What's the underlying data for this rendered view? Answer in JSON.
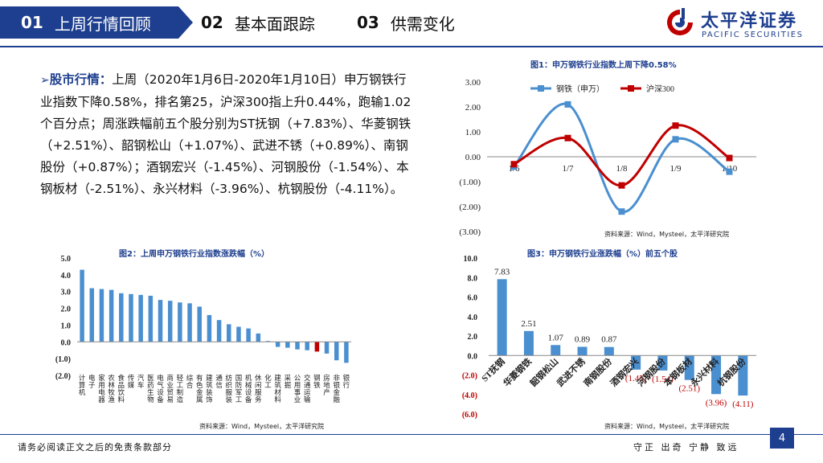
{
  "header": {
    "tabs": [
      {
        "num": "01",
        "label": "上周行情回顾"
      },
      {
        "num": "02",
        "label": "基本面跟踪"
      },
      {
        "num": "03",
        "label": "供需变化"
      }
    ],
    "logo_cn": "太平洋证券",
    "logo_en": "PACIFIC SECURITIES"
  },
  "market": {
    "keyword": "股市行情：",
    "text": "上周（2020年1月6日-2020年1月10日）申万钢铁行业指数下降0.58%，排名第25，沪深300指上升0.44%，跑输1.02个百分点；周涨跌幅前五个股分别为ST抚钢（+7.83%）、华菱钢铁（+2.51%）、韶钢松山（+1.07%）、武进不锈（+0.89%）、南钢股份（+0.87%）；酒钢宏兴（-1.45%）、河钢股份（-1.54%）、本钢板材（-2.51%）、永兴材料（-3.96%）、杭钢股份（-4.11%）。"
  },
  "chart_data": [
    {
      "type": "line",
      "title": "图1：申万钢铁行业指数上周下降0.58%",
      "source": "资料来源：Wind，Mysteel，太平洋研究院",
      "x": [
        "1/6",
        "1/7",
        "1/8",
        "1/9",
        "1/10"
      ],
      "ylim": [
        -3,
        3
      ],
      "ytick_labels": [
        "3.00",
        "2.00",
        "1.00",
        "0.00",
        "(1.00)",
        "(2.00)",
        "(3.00)"
      ],
      "series": [
        {
          "name": "钢铁（申万）",
          "color": "#4a8fd0",
          "values": [
            -0.4,
            2.1,
            -2.2,
            0.7,
            -0.6
          ]
        },
        {
          "name": "沪深300",
          "color": "#c00000",
          "values": [
            -0.3,
            0.75,
            -1.15,
            1.25,
            -0.05
          ]
        }
      ]
    },
    {
      "type": "bar",
      "title": "图2：上周申万钢铁行业指数涨跌幅（%）",
      "source": "资料来源：Wind，Mysteel，太平洋研究院",
      "ylim": [
        -2,
        5
      ],
      "ytick_labels": [
        "5.0",
        "4.0",
        "3.0",
        "2.0",
        "1.0",
        "0.0",
        "(1.0)",
        "(2.0)"
      ],
      "highlight_color": "#c00000",
      "bar_color": "#4a8fd0",
      "categories": [
        "计算机",
        "电子",
        "家用电器",
        "农林牧渔",
        "食品饮料",
        "传媒",
        "汽车",
        "医药生物",
        "电气设备",
        "商业贸易",
        "轻工制造",
        "综合",
        "有色金属",
        "建筑装饰",
        "通信",
        "纺织服装",
        "国防军工",
        "机械设备",
        "休闲服务",
        "化工",
        "建筑材料",
        "采掘",
        "公用事业",
        "交通运输",
        "钢铁",
        "房地产",
        "非银金融",
        "银行"
      ],
      "values": [
        4.3,
        3.2,
        3.15,
        3.1,
        2.9,
        2.85,
        2.8,
        2.75,
        2.5,
        2.45,
        2.35,
        2.3,
        2.1,
        1.6,
        1.3,
        1.05,
        0.9,
        0.8,
        0.5,
        0.05,
        -0.3,
        -0.35,
        -0.45,
        -0.5,
        -0.58,
        -0.7,
        -1.1,
        -1.25
      ],
      "highlight_index": 24
    },
    {
      "type": "bar",
      "title": "图3：申万钢铁行业涨跌幅（%）前五个股",
      "source": "资料来源：Wind，Mysteel，太平洋研究院",
      "ylim": [
        -6,
        10
      ],
      "ytick_labels": [
        "10.0",
        "8.0",
        "6.0",
        "4.0",
        "2.0",
        "0.0",
        "(2.0)",
        "(4.0)",
        "(6.0)"
      ],
      "bar_color": "#4a8fd0",
      "categories": [
        "ST抚钢",
        "华菱钢铁",
        "韶钢松山",
        "武进不锈",
        "南钢股份",
        "酒钢宏兴",
        "河钢股份",
        "本钢板材",
        "永兴材料",
        "杭钢股份"
      ],
      "values": [
        7.83,
        2.51,
        1.07,
        0.89,
        0.87,
        -1.45,
        -1.54,
        -2.51,
        -3.96,
        -4.11
      ],
      "value_labels": [
        "7.83",
        "2.51",
        "1.07",
        "0.89",
        "0.87",
        "(1.45)",
        "(1.54)",
        "(2.51)",
        "(3.96)",
        "(4.11)"
      ]
    }
  ],
  "footer": {
    "disclaimer": "请务必阅读正文之后的免责条款部分",
    "motto": "守正 出奇 宁静 致远",
    "page": "4"
  }
}
